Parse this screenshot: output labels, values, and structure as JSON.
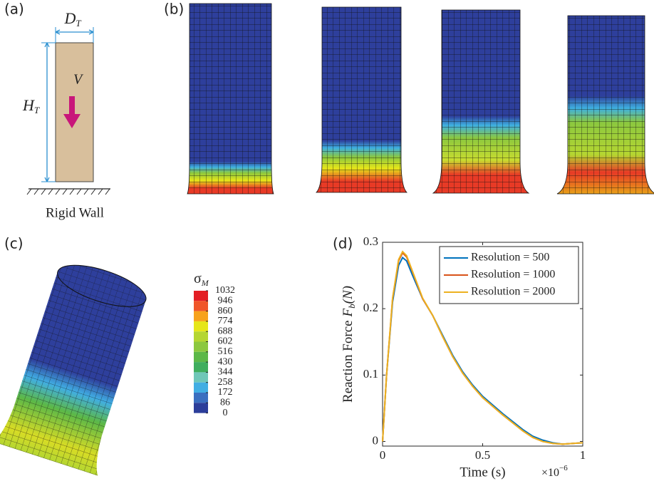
{
  "panel_labels": [
    "(a)",
    "(b)",
    "(c)",
    "(d)"
  ],
  "schematic": {
    "width_symbol": "D",
    "width_sub": "T",
    "height_symbol": "H",
    "height_sub": "T",
    "velocity_symbol": "V",
    "wall_label": "Rigid Wall"
  },
  "colorbar": {
    "title": "σ",
    "title_sub": "M",
    "ticks": [
      1032,
      946,
      860,
      774,
      688,
      602,
      516,
      430,
      344,
      258,
      172,
      86,
      0
    ],
    "colors": [
      "#e31e24",
      "#f0562a",
      "#f7a21c",
      "#e6e619",
      "#b5d631",
      "#8cc83f",
      "#5cb848",
      "#3fae5e",
      "#6fc7b8",
      "#41aee3",
      "#3a6fc0",
      "#2c3e9a"
    ]
  },
  "chart_data": {
    "type": "line",
    "xlabel": "Time (s)",
    "x_multiplier": "×10",
    "x_multiplier_exp": "−6",
    "ylabel": "Reaction Force",
    "ylabel_symbol": "F",
    "ylabel_sub": "b",
    "ylabel_unit": "(N)",
    "x": [
      0,
      0.02,
      0.05,
      0.08,
      0.1,
      0.12,
      0.15,
      0.2,
      0.25,
      0.3,
      0.35,
      0.4,
      0.45,
      0.5,
      0.55,
      0.6,
      0.65,
      0.7,
      0.75,
      0.8,
      0.85,
      0.9,
      0.95,
      1
    ],
    "series": [
      {
        "name": "Resolution = 500",
        "color": "#0072bd",
        "values": [
          0,
          0.1,
          0.21,
          0.265,
          0.277,
          0.272,
          0.25,
          0.215,
          0.19,
          0.16,
          0.13,
          0.105,
          0.085,
          0.068,
          0.055,
          0.042,
          0.03,
          0.018,
          0.008,
          0.002,
          -0.002,
          -0.004,
          -0.003,
          -0.002
        ]
      },
      {
        "name": "Resolution = 1000",
        "color": "#d95319",
        "values": [
          0,
          0.1,
          0.215,
          0.272,
          0.284,
          0.278,
          0.255,
          0.215,
          0.19,
          0.158,
          0.128,
          0.103,
          0.083,
          0.066,
          0.053,
          0.04,
          0.028,
          0.016,
          0.006,
          0,
          -0.003,
          -0.004,
          -0.003,
          -0.002
        ]
      },
      {
        "name": "Resolution = 2000",
        "color": "#edb120",
        "values": [
          0,
          0.1,
          0.216,
          0.274,
          0.286,
          0.28,
          0.256,
          0.216,
          0.19,
          0.158,
          0.128,
          0.103,
          0.083,
          0.066,
          0.053,
          0.04,
          0.028,
          0.016,
          0.006,
          0,
          -0.003,
          -0.004,
          -0.003,
          -0.002
        ]
      }
    ],
    "xlim": [
      0,
      1
    ],
    "xticks": [
      0,
      0.5,
      1
    ],
    "ylim": [
      -0.007,
      0.3
    ],
    "yticks": [
      0,
      0.1,
      0.2,
      0.3
    ],
    "legend": "upper right"
  }
}
